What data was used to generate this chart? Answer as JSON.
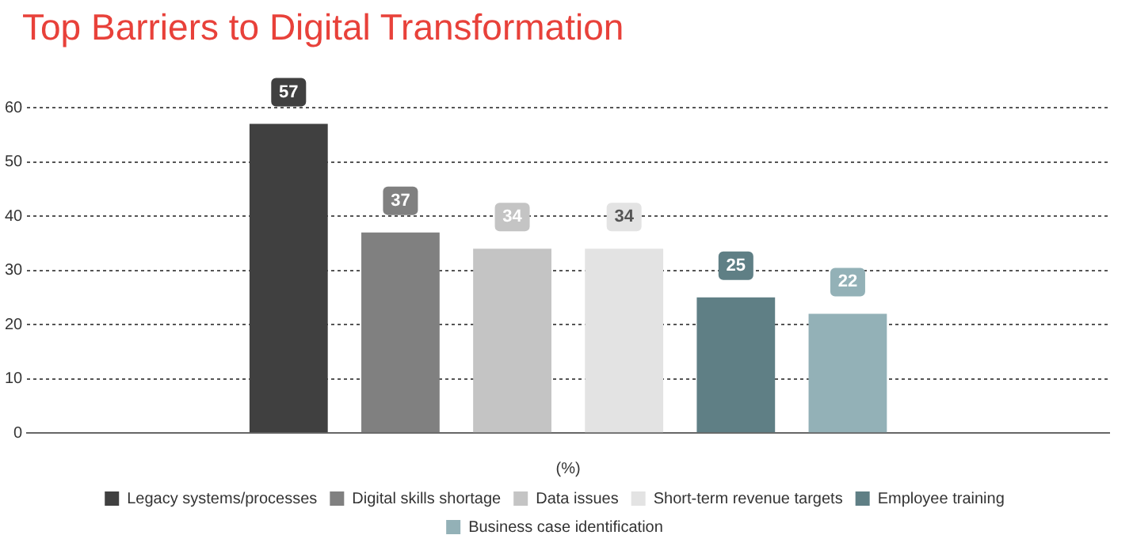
{
  "chart_data": {
    "type": "bar",
    "title": "Top Barriers to Digital Transformation",
    "xlabel": "(%)",
    "categories": [
      null
    ],
    "series": [
      {
        "name": "Legacy systems/processes",
        "color": "#404040",
        "values": [
          57
        ]
      },
      {
        "name": "Digital skills shortage",
        "color": "#808080",
        "values": [
          37
        ]
      },
      {
        "name": "Data issues",
        "color": "#c4c4c4",
        "values": [
          34
        ]
      },
      {
        "name": "Short-term revenue targets",
        "color": "#e3e3e3",
        "values": [
          34
        ]
      },
      {
        "name": "Employee training",
        "color": "#5f7f85",
        "values": [
          25
        ]
      },
      {
        "name": "Business case identification",
        "color": "#93b1b7",
        "values": [
          22
        ]
      }
    ],
    "ylim": [
      0,
      60
    ],
    "yticks": [
      0,
      10,
      20,
      30,
      40,
      50,
      60
    ],
    "grid": "y",
    "legend": "bottom",
    "data_labels": true
  }
}
